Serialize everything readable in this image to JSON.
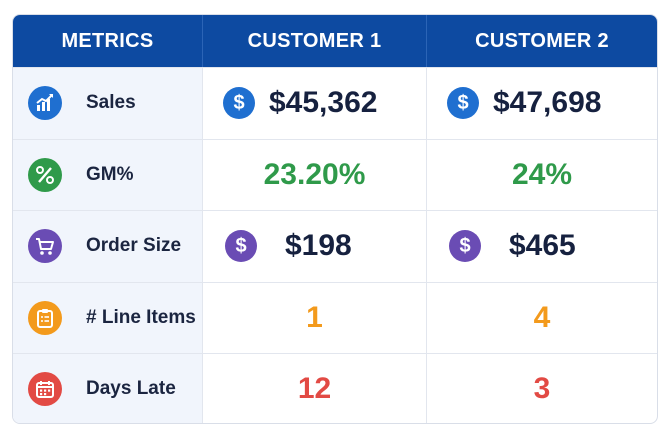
{
  "header": {
    "metrics_label": "METRICS",
    "customer1_label": "CUSTOMER 1",
    "customer2_label": "CUSTOMER 2",
    "bg_color": "#0d4aa1"
  },
  "rows": [
    {
      "label": "Sales",
      "icon": "sales-chart-icon",
      "icon_color": "#1f6fd0",
      "c1": "$45,362",
      "c2": "$47,698",
      "c1_icon": "dollar-icon",
      "c2_icon": "dollar-icon",
      "value_icon_color": "#1f6fd0"
    },
    {
      "label": "GM%",
      "icon": "percent-icon",
      "icon_color": "#2f9a4a",
      "c1": "23.20%",
      "c2": "24%",
      "value_color": "#2f9a4a"
    },
    {
      "label": "Order Size",
      "icon": "shopping-cart-icon",
      "icon_color": "#6a4cb4",
      "c1": "$198",
      "c2": "$465",
      "c1_icon": "dollar-icon",
      "c2_icon": "dollar-icon",
      "value_icon_color": "#6a4cb4"
    },
    {
      "label": "# Line Items",
      "icon": "clipboard-list-icon",
      "icon_color": "#f39a1c",
      "c1": "1",
      "c2": "4",
      "value_color": "#f39a1c"
    },
    {
      "label": "Days Late",
      "icon": "calendar-icon",
      "icon_color": "#e24a44",
      "c1": "12",
      "c2": "3",
      "value_color": "#e24a44"
    }
  ]
}
